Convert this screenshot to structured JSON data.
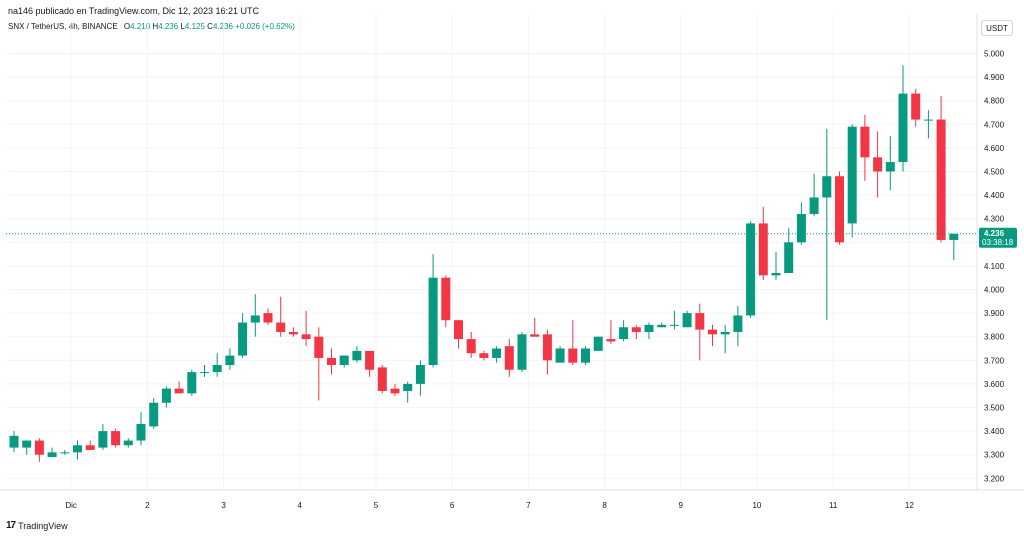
{
  "header": {
    "published_by": "na146 publicado en TradingView.com, Dic 12, 2023 16:21 UTC"
  },
  "symbol": {
    "name": "SNX / TetherUS, 4h, BINANCE",
    "open_label": "O",
    "open": "4.210",
    "high_label": "H",
    "high": "4.236",
    "low_label": "L",
    "low": "4.125",
    "close_label": "C",
    "close": "4.236",
    "change": "+0.026 (+0.62%)"
  },
  "currency": "USDT",
  "last_price": {
    "price": "4.236",
    "countdown": "03:38:18"
  },
  "footer": {
    "brand": "TradingView"
  },
  "colors": {
    "up": "#089981",
    "down": "#f23645",
    "grid": "#f0f3fa",
    "price_line": "#089981"
  },
  "chart_data": {
    "type": "candlestick",
    "title": "",
    "xlabel": "",
    "ylabel": "",
    "ylim": [
      3.14,
      5.05
    ],
    "y_ticks": [
      "3.200",
      "3.300",
      "3.400",
      "3.500",
      "3.600",
      "3.700",
      "3.800",
      "3.900",
      "4.000",
      "4.100",
      "4.200",
      "4.300",
      "4.400",
      "4.500",
      "4.600",
      "4.700",
      "4.800",
      "4.900",
      "5.000"
    ],
    "x_ticks": [
      {
        "label": "Dic",
        "index": 4.5
      },
      {
        "label": "2",
        "index": 10.5
      },
      {
        "label": "3",
        "index": 16.5
      },
      {
        "label": "4",
        "index": 22.5
      },
      {
        "label": "5",
        "index": 28.5
      },
      {
        "label": "6",
        "index": 34.5
      },
      {
        "label": "7",
        "index": 40.5
      },
      {
        "label": "8",
        "index": 46.5
      },
      {
        "label": "9",
        "index": 52.5
      },
      {
        "label": "10",
        "index": 58.5
      },
      {
        "label": "11",
        "index": 64.5
      },
      {
        "label": "12",
        "index": 70.5
      }
    ],
    "candles": [
      {
        "o": 3.33,
        "h": 3.4,
        "l": 3.31,
        "c": 3.38
      },
      {
        "o": 3.33,
        "h": 3.36,
        "l": 3.3,
        "c": 3.36
      },
      {
        "o": 3.36,
        "h": 3.37,
        "l": 3.27,
        "c": 3.3
      },
      {
        "o": 3.29,
        "h": 3.33,
        "l": 3.29,
        "c": 3.31
      },
      {
        "o": 3.31,
        "h": 3.32,
        "l": 3.3,
        "c": 3.31
      },
      {
        "o": 3.31,
        "h": 3.36,
        "l": 3.28,
        "c": 3.34
      },
      {
        "o": 3.34,
        "h": 3.36,
        "l": 3.32,
        "c": 3.32
      },
      {
        "o": 3.33,
        "h": 3.43,
        "l": 3.32,
        "c": 3.4
      },
      {
        "o": 3.4,
        "h": 3.41,
        "l": 3.33,
        "c": 3.34
      },
      {
        "o": 3.34,
        "h": 3.37,
        "l": 3.33,
        "c": 3.36
      },
      {
        "o": 3.36,
        "h": 3.48,
        "l": 3.34,
        "c": 3.43
      },
      {
        "o": 3.42,
        "h": 3.54,
        "l": 3.41,
        "c": 3.52
      },
      {
        "o": 3.52,
        "h": 3.59,
        "l": 3.5,
        "c": 3.58
      },
      {
        "o": 3.58,
        "h": 3.61,
        "l": 3.56,
        "c": 3.56
      },
      {
        "o": 3.56,
        "h": 3.66,
        "l": 3.55,
        "c": 3.65
      },
      {
        "o": 3.65,
        "h": 3.68,
        "l": 3.63,
        "c": 3.65
      },
      {
        "o": 3.65,
        "h": 3.73,
        "l": 3.63,
        "c": 3.68
      },
      {
        "o": 3.68,
        "h": 3.75,
        "l": 3.66,
        "c": 3.72
      },
      {
        "o": 3.72,
        "h": 3.9,
        "l": 3.71,
        "c": 3.86
      },
      {
        "o": 3.86,
        "h": 3.98,
        "l": 3.8,
        "c": 3.89
      },
      {
        "o": 3.9,
        "h": 3.92,
        "l": 3.85,
        "c": 3.86
      },
      {
        "o": 3.86,
        "h": 3.97,
        "l": 3.8,
        "c": 3.82
      },
      {
        "o": 3.82,
        "h": 3.84,
        "l": 3.8,
        "c": 3.81
      },
      {
        "o": 3.81,
        "h": 3.91,
        "l": 3.76,
        "c": 3.79
      },
      {
        "o": 3.8,
        "h": 3.84,
        "l": 3.53,
        "c": 3.71
      },
      {
        "o": 3.71,
        "h": 3.75,
        "l": 3.64,
        "c": 3.68
      },
      {
        "o": 3.68,
        "h": 3.72,
        "l": 3.67,
        "c": 3.72
      },
      {
        "o": 3.7,
        "h": 3.76,
        "l": 3.69,
        "c": 3.74
      },
      {
        "o": 3.74,
        "h": 3.74,
        "l": 3.63,
        "c": 3.66
      },
      {
        "o": 3.67,
        "h": 3.68,
        "l": 3.56,
        "c": 3.57
      },
      {
        "o": 3.58,
        "h": 3.6,
        "l": 3.55,
        "c": 3.56
      },
      {
        "o": 3.57,
        "h": 3.61,
        "l": 3.52,
        "c": 3.6
      },
      {
        "o": 3.6,
        "h": 3.7,
        "l": 3.55,
        "c": 3.68
      },
      {
        "o": 3.68,
        "h": 4.15,
        "l": 3.67,
        "c": 4.05
      },
      {
        "o": 4.05,
        "h": 4.06,
        "l": 3.84,
        "c": 3.87
      },
      {
        "o": 3.87,
        "h": 3.87,
        "l": 3.75,
        "c": 3.79
      },
      {
        "o": 3.79,
        "h": 3.82,
        "l": 3.71,
        "c": 3.73
      },
      {
        "o": 3.73,
        "h": 3.74,
        "l": 3.7,
        "c": 3.71
      },
      {
        "o": 3.71,
        "h": 3.76,
        "l": 3.69,
        "c": 3.75
      },
      {
        "o": 3.76,
        "h": 3.79,
        "l": 3.63,
        "c": 3.66
      },
      {
        "o": 3.66,
        "h": 3.82,
        "l": 3.65,
        "c": 3.81
      },
      {
        "o": 3.81,
        "h": 3.88,
        "l": 3.8,
        "c": 3.8
      },
      {
        "o": 3.81,
        "h": 3.83,
        "l": 3.64,
        "c": 3.7
      },
      {
        "o": 3.69,
        "h": 3.76,
        "l": 3.69,
        "c": 3.75
      },
      {
        "o": 3.75,
        "h": 3.87,
        "l": 3.68,
        "c": 3.69
      },
      {
        "o": 3.69,
        "h": 3.76,
        "l": 3.68,
        "c": 3.75
      },
      {
        "o": 3.74,
        "h": 3.8,
        "l": 3.74,
        "c": 3.8
      },
      {
        "o": 3.79,
        "h": 3.87,
        "l": 3.77,
        "c": 3.78
      },
      {
        "o": 3.79,
        "h": 3.87,
        "l": 3.78,
        "c": 3.84
      },
      {
        "o": 3.84,
        "h": 3.85,
        "l": 3.79,
        "c": 3.82
      },
      {
        "o": 3.82,
        "h": 3.86,
        "l": 3.79,
        "c": 3.85
      },
      {
        "o": 3.84,
        "h": 3.86,
        "l": 3.84,
        "c": 3.85
      },
      {
        "o": 3.85,
        "h": 3.91,
        "l": 3.83,
        "c": 3.85
      },
      {
        "o": 3.84,
        "h": 3.91,
        "l": 3.84,
        "c": 3.9
      },
      {
        "o": 3.9,
        "h": 3.94,
        "l": 3.7,
        "c": 3.83
      },
      {
        "o": 3.83,
        "h": 3.85,
        "l": 3.76,
        "c": 3.81
      },
      {
        "o": 3.81,
        "h": 3.85,
        "l": 3.73,
        "c": 3.82
      },
      {
        "o": 3.82,
        "h": 3.93,
        "l": 3.76,
        "c": 3.89
      },
      {
        "o": 3.89,
        "h": 4.29,
        "l": 3.88,
        "c": 4.28
      },
      {
        "o": 4.28,
        "h": 4.35,
        "l": 4.04,
        "c": 4.06
      },
      {
        "o": 4.06,
        "h": 4.16,
        "l": 4.04,
        "c": 4.07
      },
      {
        "o": 4.07,
        "h": 4.26,
        "l": 4.07,
        "c": 4.2
      },
      {
        "o": 4.2,
        "h": 4.37,
        "l": 4.19,
        "c": 4.32
      },
      {
        "o": 4.32,
        "h": 4.49,
        "l": 4.31,
        "c": 4.39
      },
      {
        "o": 4.39,
        "h": 4.68,
        "l": 3.87,
        "c": 4.48
      },
      {
        "o": 4.48,
        "h": 4.5,
        "l": 4.19,
        "c": 4.2
      },
      {
        "o": 4.28,
        "h": 4.7,
        "l": 4.22,
        "c": 4.69
      },
      {
        "o": 4.69,
        "h": 4.74,
        "l": 4.46,
        "c": 4.56
      },
      {
        "o": 4.56,
        "h": 4.67,
        "l": 4.39,
        "c": 4.5
      },
      {
        "o": 4.5,
        "h": 4.65,
        "l": 4.42,
        "c": 4.54
      },
      {
        "o": 4.54,
        "h": 4.95,
        "l": 4.5,
        "c": 4.83
      },
      {
        "o": 4.83,
        "h": 4.85,
        "l": 4.69,
        "c": 4.72
      },
      {
        "o": 4.72,
        "h": 4.76,
        "l": 4.64,
        "c": 4.72
      },
      {
        "o": 4.72,
        "h": 4.82,
        "l": 4.2,
        "c": 4.21
      },
      {
        "o": 4.21,
        "h": 4.236,
        "l": 4.125,
        "c": 4.236
      }
    ]
  }
}
